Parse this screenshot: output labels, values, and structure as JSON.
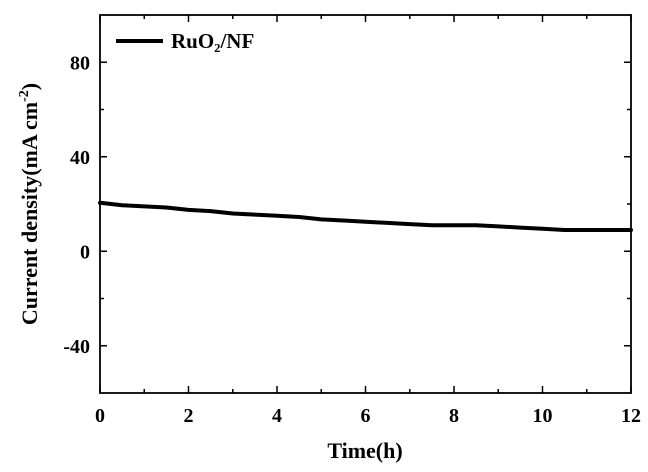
{
  "chart_data": {
    "type": "line",
    "title": "",
    "xlabel": "Time(h)",
    "ylabel": "Current density(mA cm",
    "ylabel_superscript": "-2",
    "ylabel_suffix": ")",
    "xlim": [
      0,
      12
    ],
    "ylim": [
      -60,
      100
    ],
    "x_ticks": [
      "0",
      "2",
      "4",
      "6",
      "8",
      "10",
      "12"
    ],
    "y_ticks": [
      "-40",
      "0",
      "40",
      "80"
    ],
    "grid": false,
    "legend_position": "top-left",
    "series": [
      {
        "name": "RuO₂/NF",
        "color": "#000000",
        "x": [
          0,
          0.5,
          1,
          1.5,
          2,
          2.5,
          3,
          3.5,
          4,
          4.5,
          5,
          5.5,
          6,
          6.5,
          7,
          7.5,
          8,
          8.5,
          9,
          9.5,
          10,
          10.5,
          11,
          11.5,
          12
        ],
        "y": [
          20.5,
          19.5,
          19,
          18.5,
          17.5,
          17,
          16,
          15.5,
          15,
          14.5,
          13.5,
          13,
          12.5,
          12,
          11.5,
          11,
          11,
          11,
          10.5,
          10,
          9.5,
          9,
          9,
          9,
          9
        ]
      }
    ]
  }
}
